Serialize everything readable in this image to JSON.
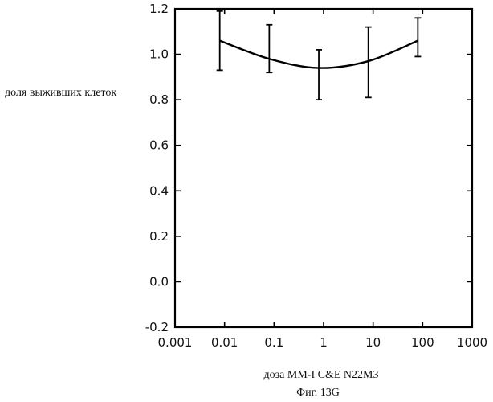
{
  "chart_data": {
    "type": "line",
    "xscale": "log",
    "xlim": [
      0.001,
      1000
    ],
    "ylim": [
      -0.2,
      1.2
    ],
    "xticks": [
      0.001,
      0.01,
      0.1,
      1,
      10,
      100,
      1000
    ],
    "xtick_labels": [
      "0.001",
      "0.01",
      "0.1",
      "1",
      "10",
      "100",
      "1000"
    ],
    "yticks": [
      -0.2,
      0.0,
      0.2,
      0.4,
      0.6,
      0.8,
      1.0,
      1.2
    ],
    "ytick_labels": [
      "-0.2",
      "0.0",
      "0.2",
      "0.4",
      "0.6",
      "0.8",
      "1.0",
      "1.2"
    ],
    "xlabel": "доза MM-I  C&E  N22M3",
    "ylabel": "доля выживших клеток",
    "caption": "Фиг. 13G",
    "grid": false,
    "series": [
      {
        "x": [
          0.008,
          0.08,
          0.8,
          8,
          80
        ],
        "y": [
          1.06,
          0.98,
          0.94,
          0.97,
          1.06
        ],
        "err_high": [
          1.19,
          1.13,
          1.02,
          1.12,
          1.16
        ],
        "err_low": [
          0.93,
          0.92,
          0.8,
          0.81,
          0.99
        ],
        "color": "#000000"
      }
    ]
  }
}
